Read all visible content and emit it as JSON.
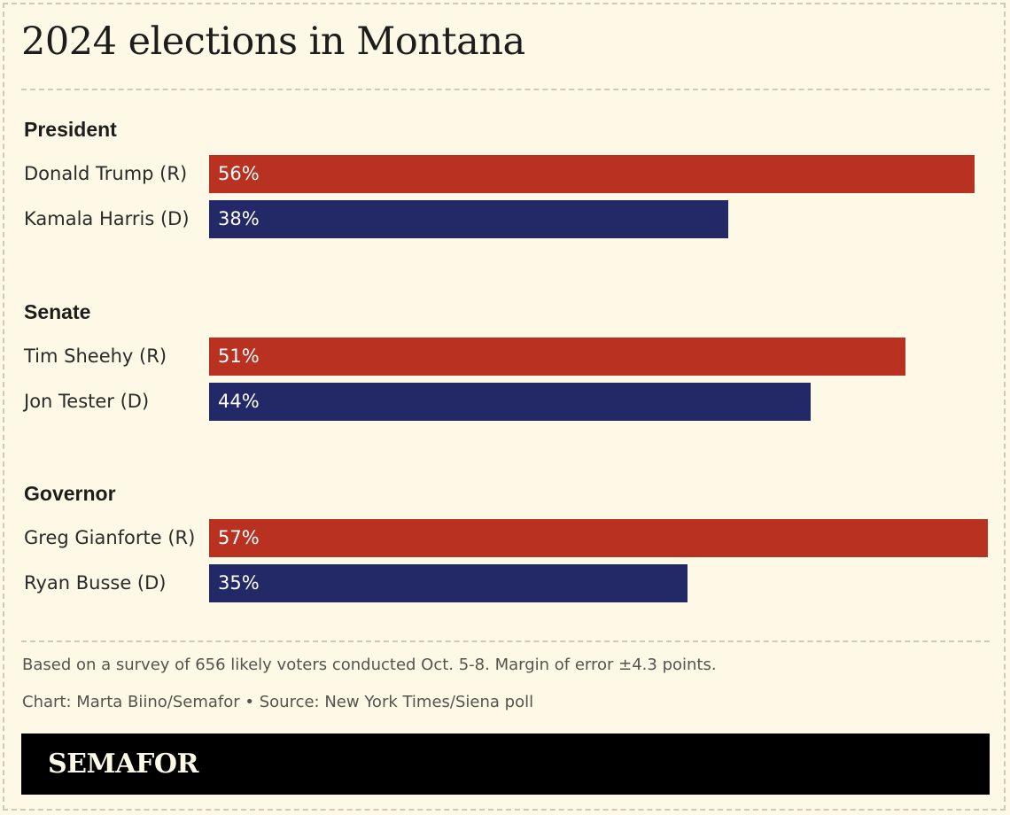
{
  "title": "2024 elections in Montana",
  "colors": {
    "republican": "#b83121",
    "democrat": "#222966",
    "background": "#fdf9e6"
  },
  "chart_data": {
    "type": "bar",
    "orientation": "horizontal",
    "groups": [
      {
        "title": "President",
        "rows": [
          {
            "label": "Donald Trump (R)",
            "party": "R",
            "value": 56,
            "value_label": "56%"
          },
          {
            "label": "Kamala Harris (D)",
            "party": "D",
            "value": 38,
            "value_label": "38%"
          }
        ]
      },
      {
        "title": "Senate",
        "rows": [
          {
            "label": "Tim Sheehy (R)",
            "party": "R",
            "value": 51,
            "value_label": "51%"
          },
          {
            "label": "Jon Tester (D)",
            "party": "D",
            "value": 44,
            "value_label": "44%"
          }
        ]
      },
      {
        "title": "Governor",
        "rows": [
          {
            "label": "Greg Gianforte (R)",
            "party": "R",
            "value": 57,
            "value_label": "57%"
          },
          {
            "label": "Ryan Busse (D)",
            "party": "D",
            "value": 35,
            "value_label": "35%"
          }
        ]
      }
    ],
    "xlim": [
      0,
      57
    ]
  },
  "footnote": "Based on a survey of 656 likely voters conducted Oct. 5-8. Margin of error ±4.3 points.",
  "credit": "Chart: Marta Biino/Semafor • Source: New York Times/Siena poll",
  "brand": "SEMAFOR"
}
